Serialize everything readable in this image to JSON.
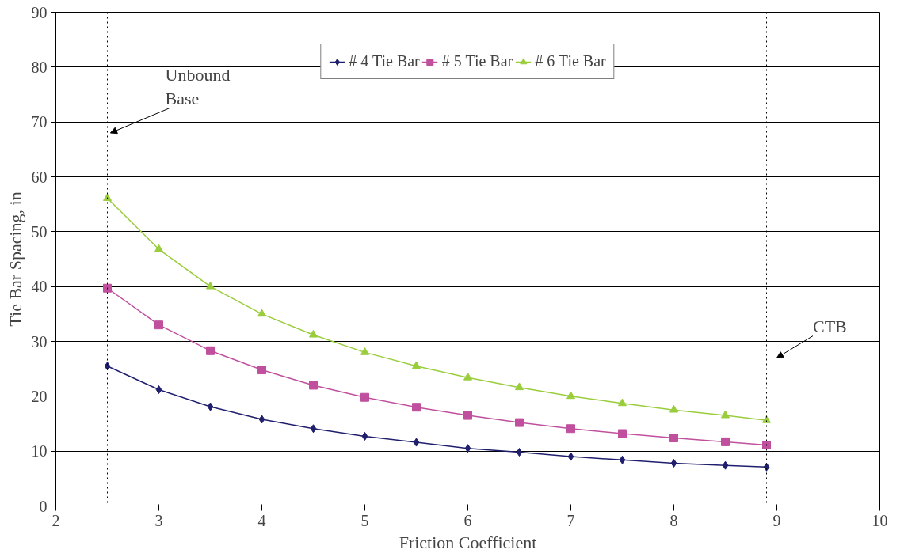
{
  "chart_data": {
    "type": "line",
    "xlabel": "Friction Coefficient",
    "ylabel": "Tie Bar Spacing, in",
    "xlim": [
      2,
      10
    ],
    "xticks": [
      2,
      3,
      4,
      5,
      6,
      7,
      8,
      9,
      10
    ],
    "ylim": [
      0,
      90
    ],
    "yticks": [
      0,
      10,
      20,
      30,
      40,
      50,
      60,
      70,
      80,
      90
    ],
    "x": [
      2.5,
      3,
      3.5,
      4,
      4.5,
      5,
      5.5,
      6,
      6.5,
      7,
      7.5,
      8,
      8.5,
      8.9
    ],
    "series": [
      {
        "name": "# 4 Tie Bar",
        "color": "#1f1f6e",
        "marker": "diamond",
        "values": [
          25.5,
          21.2,
          18.1,
          15.8,
          14.1,
          12.7,
          11.6,
          10.5,
          9.8,
          9.0,
          8.4,
          7.8,
          7.4,
          7.1
        ]
      },
      {
        "name": "# 5 Tie Bar",
        "color": "#c0509e",
        "marker": "square",
        "values": [
          39.7,
          33.0,
          28.3,
          24.8,
          22.0,
          19.8,
          18.0,
          16.5,
          15.2,
          14.1,
          13.2,
          12.4,
          11.7,
          11.1
        ]
      },
      {
        "name": "# 6 Tie Bar",
        "color": "#9acd3c",
        "marker": "triangle",
        "values": [
          56.1,
          46.8,
          40.0,
          35.0,
          31.2,
          28.0,
          25.5,
          23.4,
          21.6,
          20.0,
          18.7,
          17.5,
          16.5,
          15.6
        ]
      }
    ],
    "ref_lines": [
      {
        "axis": "x",
        "value": 2.5,
        "label": null,
        "color": "#000000",
        "line_style": "dotted"
      },
      {
        "axis": "x",
        "value": 8.9,
        "label": null,
        "color": "#000000",
        "line_style": "dotted"
      }
    ],
    "annotations": [
      {
        "text": "Unbound Base",
        "x": 2.5,
        "y": 68
      },
      {
        "text": "CTB",
        "x": 8.9,
        "y": 27
      }
    ],
    "grid": "y",
    "legend": "top",
    "line_style": "solid"
  }
}
